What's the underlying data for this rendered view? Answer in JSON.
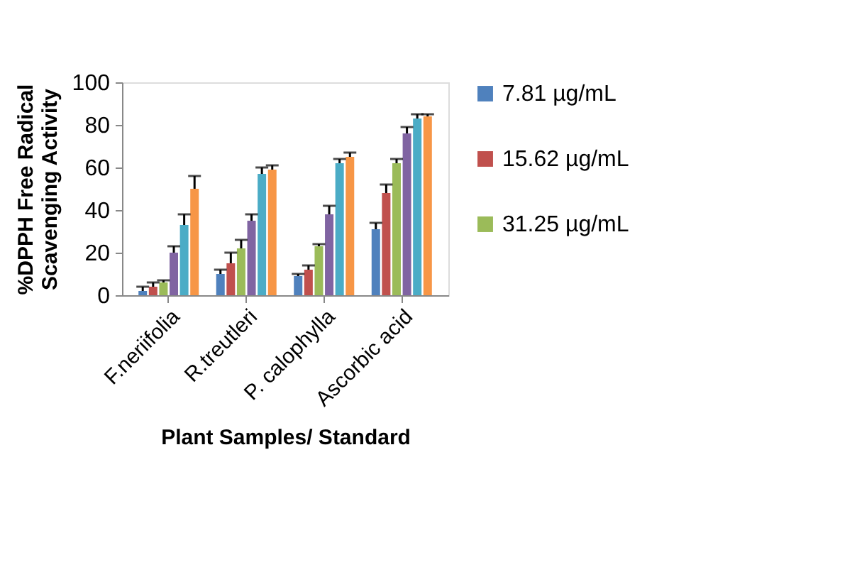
{
  "chart_data": {
    "type": "bar",
    "xlabel": "Plant Samples/ Standard",
    "ylabel": "%DPPH Free Radical Scavenging Activity",
    "categories": [
      "F.neriifolia",
      "R.treutleri",
      "P. calophylla",
      "Ascorbic acid"
    ],
    "series": [
      {
        "name": "7.81 µg/mL",
        "color": "#4f81bd",
        "values": [
          2,
          10,
          9,
          31
        ],
        "errors": [
          [
            2,
            4
          ],
          [
            10,
            12
          ],
          [
            9,
            10
          ],
          [
            31,
            34
          ]
        ]
      },
      {
        "name": "15.62 µg/mL",
        "color": "#c0504d",
        "values": [
          4,
          15,
          12,
          48
        ],
        "errors": [
          [
            4,
            6
          ],
          [
            15,
            20
          ],
          [
            12,
            14
          ],
          [
            48,
            52
          ]
        ]
      },
      {
        "name": "31.25 µg/mL",
        "color": "#9bbb59",
        "values": [
          6,
          22,
          23,
          62
        ],
        "errors": [
          [
            6,
            7
          ],
          [
            22,
            26
          ],
          [
            23,
            24
          ],
          [
            62,
            64
          ]
        ]
      },
      {
        "color": "#8064a2",
        "values": [
          20,
          35,
          38,
          76
        ],
        "errors": [
          [
            20,
            23
          ],
          [
            35,
            38
          ],
          [
            38,
            42
          ],
          [
            76,
            79
          ]
        ]
      },
      {
        "color": "#4bacc6",
        "values": [
          33,
          57,
          62,
          83
        ],
        "errors": [
          [
            33,
            38
          ],
          [
            57,
            60
          ],
          [
            62,
            64
          ],
          [
            83,
            85
          ]
        ]
      },
      {
        "color": "#f79646",
        "values": [
          50,
          59,
          65,
          84
        ],
        "errors": [
          [
            50,
            56
          ],
          [
            59,
            61
          ],
          [
            65,
            67
          ],
          [
            84,
            85
          ]
        ]
      }
    ],
    "ylim": [
      0,
      100
    ],
    "yticks": [
      0,
      20,
      40,
      60,
      80,
      100
    ],
    "grid": false,
    "legend": "right"
  }
}
